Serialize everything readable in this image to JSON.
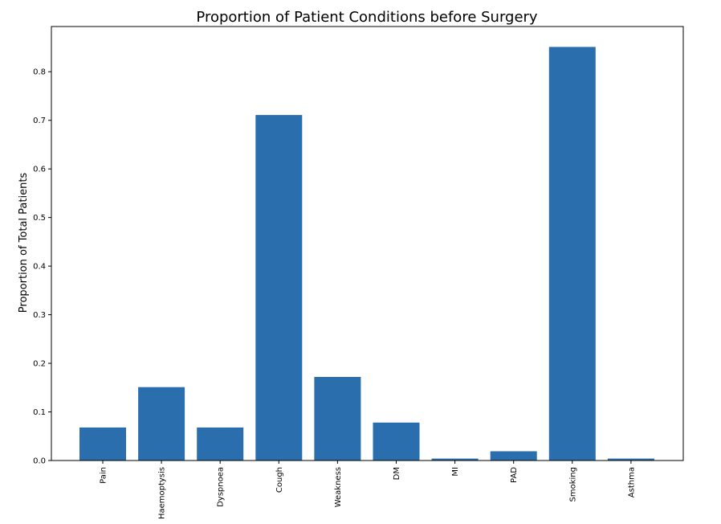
{
  "chart_data": {
    "type": "bar",
    "title": "Proportion of Patient Conditions before Surgery",
    "xlabel": "",
    "ylabel": "Proportion of Total Patients",
    "categories": [
      "Pain",
      "Haemoptysis",
      "Dyspnoea",
      "Cough",
      "Weakness",
      "DM",
      "MI",
      "PAD",
      "Smoking",
      "Asthma"
    ],
    "values": [
      0.068,
      0.151,
      0.068,
      0.711,
      0.172,
      0.078,
      0.004,
      0.019,
      0.851,
      0.004
    ],
    "ylim": [
      0,
      0.893
    ],
    "yticks": [
      0.0,
      0.1,
      0.2,
      0.3,
      0.4,
      0.5,
      0.6,
      0.7,
      0.8
    ],
    "ytick_labels": [
      "0.0",
      "0.1",
      "0.2",
      "0.3",
      "0.4",
      "0.5",
      "0.6",
      "0.7",
      "0.8"
    ],
    "bar_color": "#2a6ead",
    "grid": false,
    "legend": "none"
  }
}
